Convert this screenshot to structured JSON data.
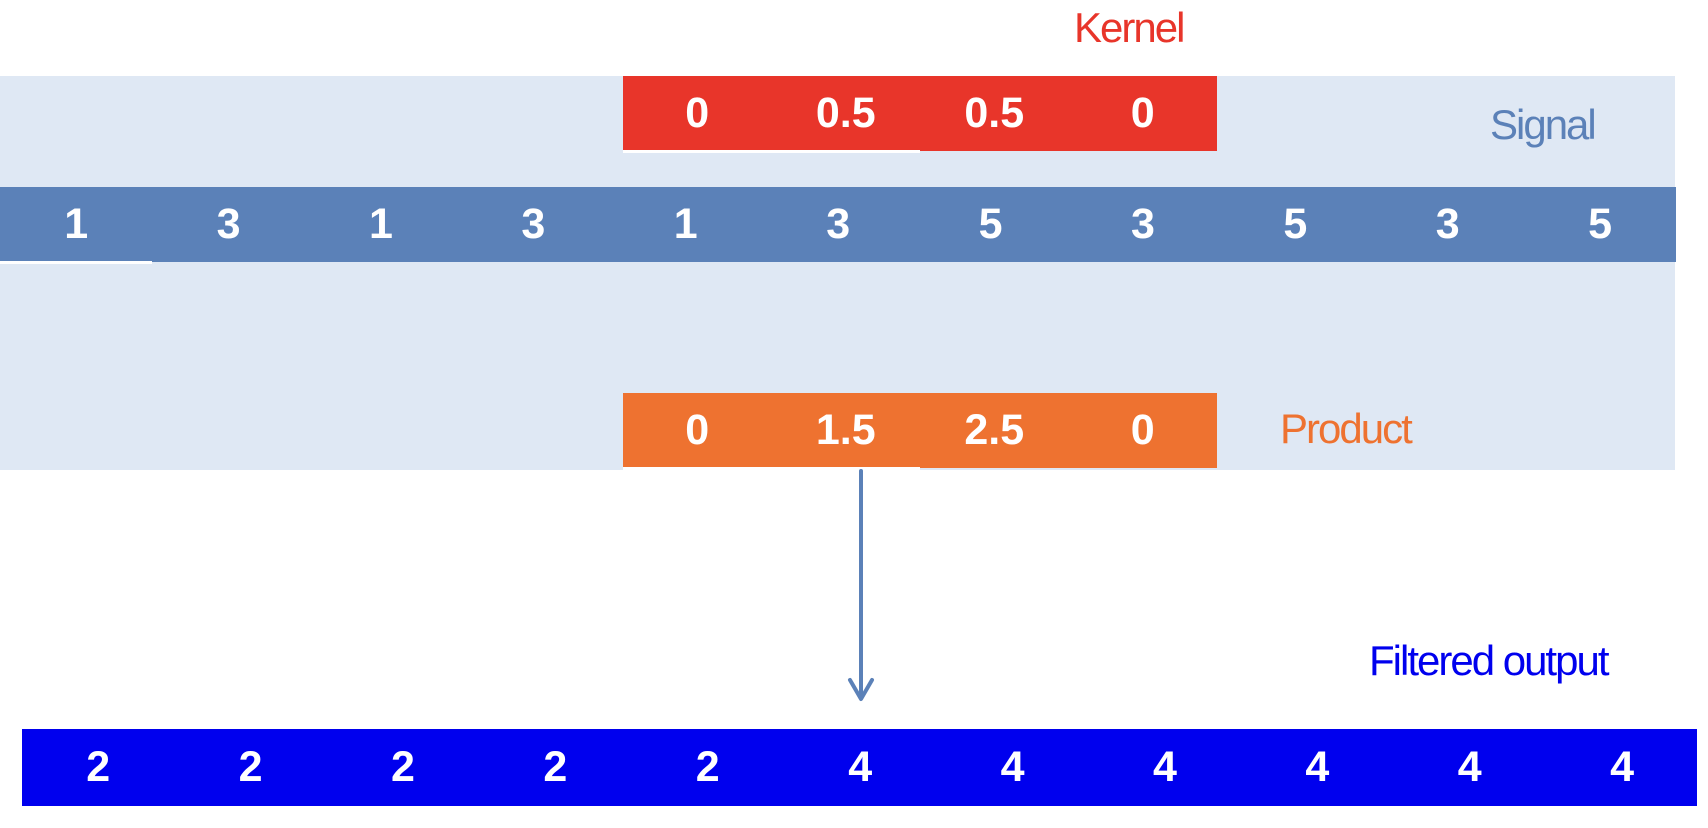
{
  "labels": {
    "kernel": "Kernel",
    "signal": "Signal",
    "product": "Product",
    "filtered_output": "Filtered output"
  },
  "kernel": [
    "0",
    "0.5",
    "0.5",
    "0"
  ],
  "signal": [
    "1",
    "3",
    "1",
    "3",
    "1",
    "3",
    "5",
    "3",
    "5",
    "3",
    "5"
  ],
  "product": [
    "0",
    "1.5",
    "2.5",
    "0"
  ],
  "output": [
    "2",
    "2",
    "2",
    "2",
    "2",
    "4",
    "4",
    "4",
    "4",
    "4",
    "4"
  ],
  "colors": {
    "kernel": "#e8352a",
    "signal": "#5b81b8",
    "signal_background": "#dfe8f4",
    "product": "#ee7230",
    "output": "#0000ee",
    "arrow": "#5b81b8"
  }
}
